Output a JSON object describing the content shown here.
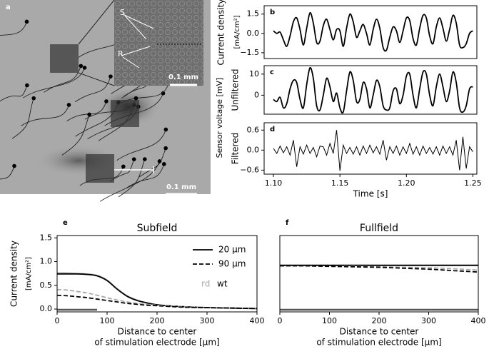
{
  "figure": {
    "panel_a": {
      "label": "a",
      "inset_labels": [
        "S",
        "R"
      ],
      "scale_bars": [
        "0.1 mm",
        "0.1 mm"
      ]
    },
    "shared_ylabel": "Sensor voltage [mV]"
  },
  "chart_data": [
    {
      "type": "line",
      "label": "b",
      "ylabel": "Current density",
      "yunit": "[mA/cm²]",
      "smooth": true,
      "x": [
        1.1,
        1.1025,
        1.105,
        1.1075,
        1.11,
        1.1125,
        1.115,
        1.1175,
        1.12,
        1.1225,
        1.125,
        1.1275,
        1.13,
        1.1325,
        1.135,
        1.1375,
        1.14,
        1.1425,
        1.145,
        1.1475,
        1.15,
        1.1525,
        1.155,
        1.1575,
        1.16,
        1.1625,
        1.165,
        1.1675,
        1.17,
        1.1725,
        1.175,
        1.1775,
        1.18,
        1.1825,
        1.185,
        1.1875,
        1.19,
        1.1925,
        1.195,
        1.1975,
        1.2,
        1.2025,
        1.205,
        1.2075,
        1.21,
        1.2125,
        1.215,
        1.2175,
        1.22,
        1.2225,
        1.225,
        1.2275,
        1.23,
        1.2325,
        1.235,
        1.2375,
        1.24,
        1.2425,
        1.245,
        1.2475,
        1.25
      ],
      "xlim": [
        1.093,
        1.253
      ],
      "ylim": [
        -1.95,
        2.15
      ],
      "yticks": [
        {
          "value": -1.5,
          "label": "−1.5"
        },
        {
          "value": 0,
          "label": "0.0"
        },
        1.5
      ],
      "series": [
        {
          "color": "#000000",
          "values": [
            0.2,
            0.0,
            0.1,
            -0.5,
            -1.0,
            -0.2,
            0.9,
            1.2,
            0.3,
            -0.9,
            0.4,
            1.6,
            0.8,
            -0.7,
            -0.6,
            0.6,
            1.1,
            0.3,
            -0.5,
            0.3,
            0.2,
            -1.0,
            0.4,
            1.5,
            0.9,
            -0.3,
            0.2,
            0.7,
            0.0,
            -0.9,
            0.3,
            1.1,
            0.4,
            -1.1,
            -1.3,
            -0.3,
            0.5,
            0.2,
            -0.7,
            0.2,
            1.2,
            1.0,
            -0.4,
            -0.9,
            0.4,
            1.4,
            1.2,
            -0.2,
            -0.8,
            0.5,
            1.2,
            0.4,
            -0.6,
            0.3,
            1.4,
            0.8,
            -0.9,
            -1.1,
            -0.8,
            0.0,
            0.2
          ]
        }
      ]
    },
    {
      "type": "line",
      "label": "c",
      "ylabel": "Unfiltered",
      "smooth": true,
      "x": [
        1.1,
        1.1025,
        1.105,
        1.1075,
        1.11,
        1.1125,
        1.115,
        1.1175,
        1.12,
        1.1225,
        1.125,
        1.1275,
        1.13,
        1.1325,
        1.135,
        1.1375,
        1.14,
        1.1425,
        1.145,
        1.1475,
        1.15,
        1.1525,
        1.155,
        1.1575,
        1.16,
        1.1625,
        1.165,
        1.1675,
        1.17,
        1.1725,
        1.175,
        1.1775,
        1.18,
        1.1825,
        1.185,
        1.1875,
        1.19,
        1.1925,
        1.195,
        1.1975,
        1.2,
        1.2025,
        1.205,
        1.2075,
        1.21,
        1.2125,
        1.215,
        1.2175,
        1.22,
        1.2225,
        1.225,
        1.2275,
        1.23,
        1.2325,
        1.235,
        1.2375,
        1.24,
        1.2425,
        1.245,
        1.2475,
        1.25
      ],
      "xlim": [
        1.093,
        1.253
      ],
      "ylim": [
        -9,
        14
      ],
      "yticks": [
        0,
        10
      ],
      "series": [
        {
          "color": "#000000",
          "values": [
            -2,
            -3,
            -1,
            -6,
            -4,
            3,
            7,
            6,
            -2,
            -6,
            5,
            13,
            8,
            -5,
            -7,
            0,
            8,
            4,
            -3,
            1,
            -6,
            -8,
            2,
            11,
            7,
            -3,
            -2,
            6,
            3,
            -6,
            0,
            7,
            4,
            -5,
            -7,
            -6,
            2,
            3,
            -4,
            0,
            9,
            10,
            0,
            -6,
            3,
            11,
            10,
            0,
            -5,
            4,
            10,
            4,
            -3,
            2,
            11,
            6,
            -6,
            -8,
            -5,
            3,
            4
          ]
        }
      ]
    },
    {
      "type": "line",
      "label": "d",
      "ylabel": "Filtered",
      "xlabel": [
        "Time [s]"
      ],
      "smooth": false,
      "x": [
        1.1,
        1.1025,
        1.105,
        1.1075,
        1.11,
        1.1125,
        1.115,
        1.1175,
        1.12,
        1.1225,
        1.125,
        1.1275,
        1.13,
        1.1325,
        1.135,
        1.1375,
        1.14,
        1.1425,
        1.145,
        1.1475,
        1.15,
        1.1525,
        1.155,
        1.1575,
        1.16,
        1.1625,
        1.165,
        1.1675,
        1.17,
        1.1725,
        1.175,
        1.1775,
        1.18,
        1.1825,
        1.185,
        1.1875,
        1.19,
        1.1925,
        1.195,
        1.1975,
        1.2,
        1.2025,
        1.205,
        1.2075,
        1.21,
        1.2125,
        1.215,
        1.2175,
        1.22,
        1.2225,
        1.225,
        1.2275,
        1.23,
        1.2325,
        1.235,
        1.2375,
        1.24,
        1.2425,
        1.245,
        1.2475,
        1.25
      ],
      "xlim": [
        1.093,
        1.253
      ],
      "ylim": [
        -0.72,
        0.82
      ],
      "yticks": [
        {
          "value": -0.6,
          "label": "−0.6"
        },
        {
          "value": 0,
          "label": "0.0"
        },
        0.6
      ],
      "xticks": [
        {
          "value": 1.1,
          "label": "1.10"
        },
        {
          "value": 1.15,
          "label": "1.15"
        },
        {
          "value": 1.2,
          "label": "1.20"
        },
        {
          "value": 1.25,
          "label": "1.25"
        }
      ],
      "series": [
        {
          "color": "#000000",
          "values": [
            0.05,
            -0.1,
            0.12,
            -0.08,
            0.1,
            -0.15,
            0.3,
            -0.5,
            0.1,
            -0.12,
            0.15,
            -0.1,
            0.08,
            -0.2,
            0.12,
            0.1,
            -0.15,
            0.2,
            -0.1,
            0.6,
            -0.62,
            0.15,
            -0.1,
            0.08,
            -0.12,
            0.1,
            -0.15,
            0.12,
            -0.1,
            0.15,
            -0.08,
            0.1,
            -0.12,
            0.3,
            -0.3,
            0.1,
            -0.1,
            0.12,
            -0.15,
            0.1,
            -0.1,
            0.2,
            -0.12,
            0.1,
            -0.15,
            0.12,
            -0.1,
            0.08,
            -0.12,
            0.1,
            -0.15,
            0.12,
            -0.1,
            0.1,
            -0.15,
            0.3,
            -0.6,
            0.4,
            -0.55,
            0.1,
            -0.05
          ]
        }
      ]
    },
    {
      "type": "line",
      "label": "e",
      "title": "Subfield",
      "ylabel": "Current density",
      "yunit": "[mA/cm²]",
      "xlabel": [
        "Distance to center",
        "of stimulation electrode [μm]"
      ],
      "smooth": true,
      "x": [
        0,
        20,
        40,
        60,
        80,
        100,
        120,
        140,
        160,
        180,
        200,
        250,
        300,
        350,
        400
      ],
      "xlim": [
        0,
        400
      ],
      "ylim": [
        -0.06,
        1.55
      ],
      "xticks": [
        0,
        100,
        200,
        300,
        400
      ],
      "yticks": [
        {
          "value": 0,
          "label": "0.0"
        },
        0.5,
        {
          "value": 1,
          "label": "1.0"
        },
        1.5
      ],
      "electrode": [
        0,
        80
      ],
      "series": [
        {
          "color": "#aaaaaa",
          "dash": false,
          "values": [
            0.76,
            0.76,
            0.75,
            0.74,
            0.71,
            0.61,
            0.43,
            0.28,
            0.19,
            0.13,
            0.09,
            0.05,
            0.03,
            0.02,
            0.01
          ]
        },
        {
          "color": "#000000",
          "dash": false,
          "values": [
            0.74,
            0.74,
            0.74,
            0.73,
            0.7,
            0.6,
            0.42,
            0.27,
            0.18,
            0.13,
            0.09,
            0.05,
            0.03,
            0.02,
            0.01
          ]
        },
        {
          "color": "#aaaaaa",
          "dash": true,
          "values": [
            0.41,
            0.4,
            0.37,
            0.34,
            0.29,
            0.24,
            0.19,
            0.15,
            0.12,
            0.1,
            0.08,
            0.05,
            0.03,
            0.02,
            0.01
          ]
        },
        {
          "color": "#000000",
          "dash": true,
          "values": [
            0.29,
            0.28,
            0.26,
            0.24,
            0.21,
            0.18,
            0.15,
            0.12,
            0.1,
            0.08,
            0.07,
            0.04,
            0.03,
            0.02,
            0.01
          ]
        }
      ],
      "legend": {
        "line_styles": [
          {
            "label": "20 μm",
            "dash": false
          },
          {
            "label": "90 μm",
            "dash": true
          }
        ],
        "color_keys": [
          {
            "label": "rd",
            "color": "#aaaaaa"
          },
          {
            "label": "wt",
            "color": "#000000"
          }
        ]
      }
    },
    {
      "type": "line",
      "label": "f",
      "title": "Fullfield",
      "xlabel": [
        "Distance to center",
        "of stimulation electrode [μm]"
      ],
      "smooth": true,
      "x": [
        0,
        50,
        100,
        150,
        200,
        250,
        300,
        350,
        400
      ],
      "xlim": [
        0,
        400
      ],
      "ylim": [
        -0.06,
        1.55
      ],
      "xticks": [
        0,
        100,
        200,
        300,
        400
      ],
      "yticks": [],
      "electrode": [
        0,
        400
      ],
      "series": [
        {
          "color": "#aaaaaa",
          "dash": false,
          "values": [
            0.93,
            0.93,
            0.93,
            0.93,
            0.93,
            0.93,
            0.93,
            0.93,
            0.93
          ]
        },
        {
          "color": "#000000",
          "dash": false,
          "values": [
            0.92,
            0.92,
            0.92,
            0.92,
            0.92,
            0.92,
            0.92,
            0.92,
            0.92
          ]
        },
        {
          "color": "#aaaaaa",
          "dash": true,
          "values": [
            0.91,
            0.91,
            0.9,
            0.9,
            0.89,
            0.88,
            0.87,
            0.85,
            0.82
          ]
        },
        {
          "color": "#000000",
          "dash": true,
          "values": [
            0.91,
            0.91,
            0.9,
            0.89,
            0.88,
            0.86,
            0.84,
            0.81,
            0.78
          ]
        }
      ]
    }
  ]
}
